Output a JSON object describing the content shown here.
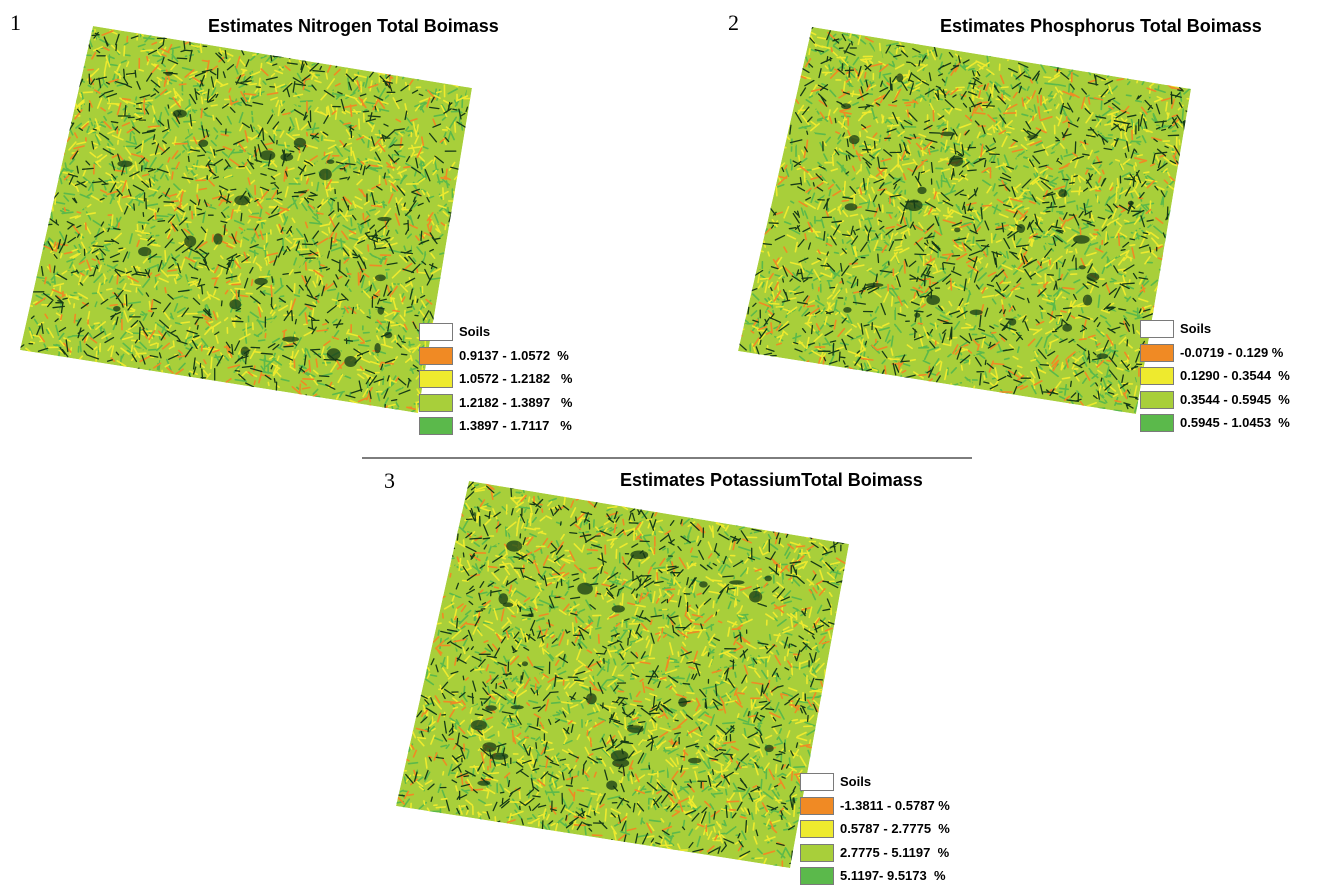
{
  "colors": {
    "soils": "#ffffff",
    "class1": "#f08a24",
    "class2": "#eeea2e",
    "class3": "#a8cf3a",
    "class4": "#5bb94b",
    "dark": "#163a17"
  },
  "panels": [
    {
      "number": "1",
      "title": "Estimates Nitrogen Total Boimass",
      "legend": [
        {
          "label": "Soils",
          "color_key": "soils"
        },
        {
          "label": "0.9137 - 1.0572  %",
          "color_key": "class1"
        },
        {
          "label": "1.0572 - 1.2182   %",
          "color_key": "class2"
        },
        {
          "label": "1.2182 - 1.3897   %",
          "color_key": "class3"
        },
        {
          "label": "1.3897 - 1.7117   %",
          "color_key": "class4"
        }
      ]
    },
    {
      "number": "2",
      "title": "Estimates Phosphorus Total Boimass",
      "legend": [
        {
          "label": "Soils",
          "color_key": "soils"
        },
        {
          "label": "-0.0719 - 0.129 %",
          "color_key": "class1"
        },
        {
          "label": "0.1290 - 0.3544  %",
          "color_key": "class2"
        },
        {
          "label": "0.3544 - 0.5945  %",
          "color_key": "class3"
        },
        {
          "label": "0.5945 - 1.0453  %",
          "color_key": "class4"
        }
      ]
    },
    {
      "number": "3",
      "title": "Estimates PotassiumTotal Boimass",
      "legend": [
        {
          "label": "Soils",
          "color_key": "soils"
        },
        {
          "label": "-1.3811 - 0.5787 %",
          "color_key": "class1"
        },
        {
          "label": "0.5787 - 2.7775  %",
          "color_key": "class2"
        },
        {
          "label": "2.7775 - 5.1197  %",
          "color_key": "class3"
        },
        {
          "label": "5.1197- 9.5173  %",
          "color_key": "class4"
        }
      ]
    }
  ]
}
